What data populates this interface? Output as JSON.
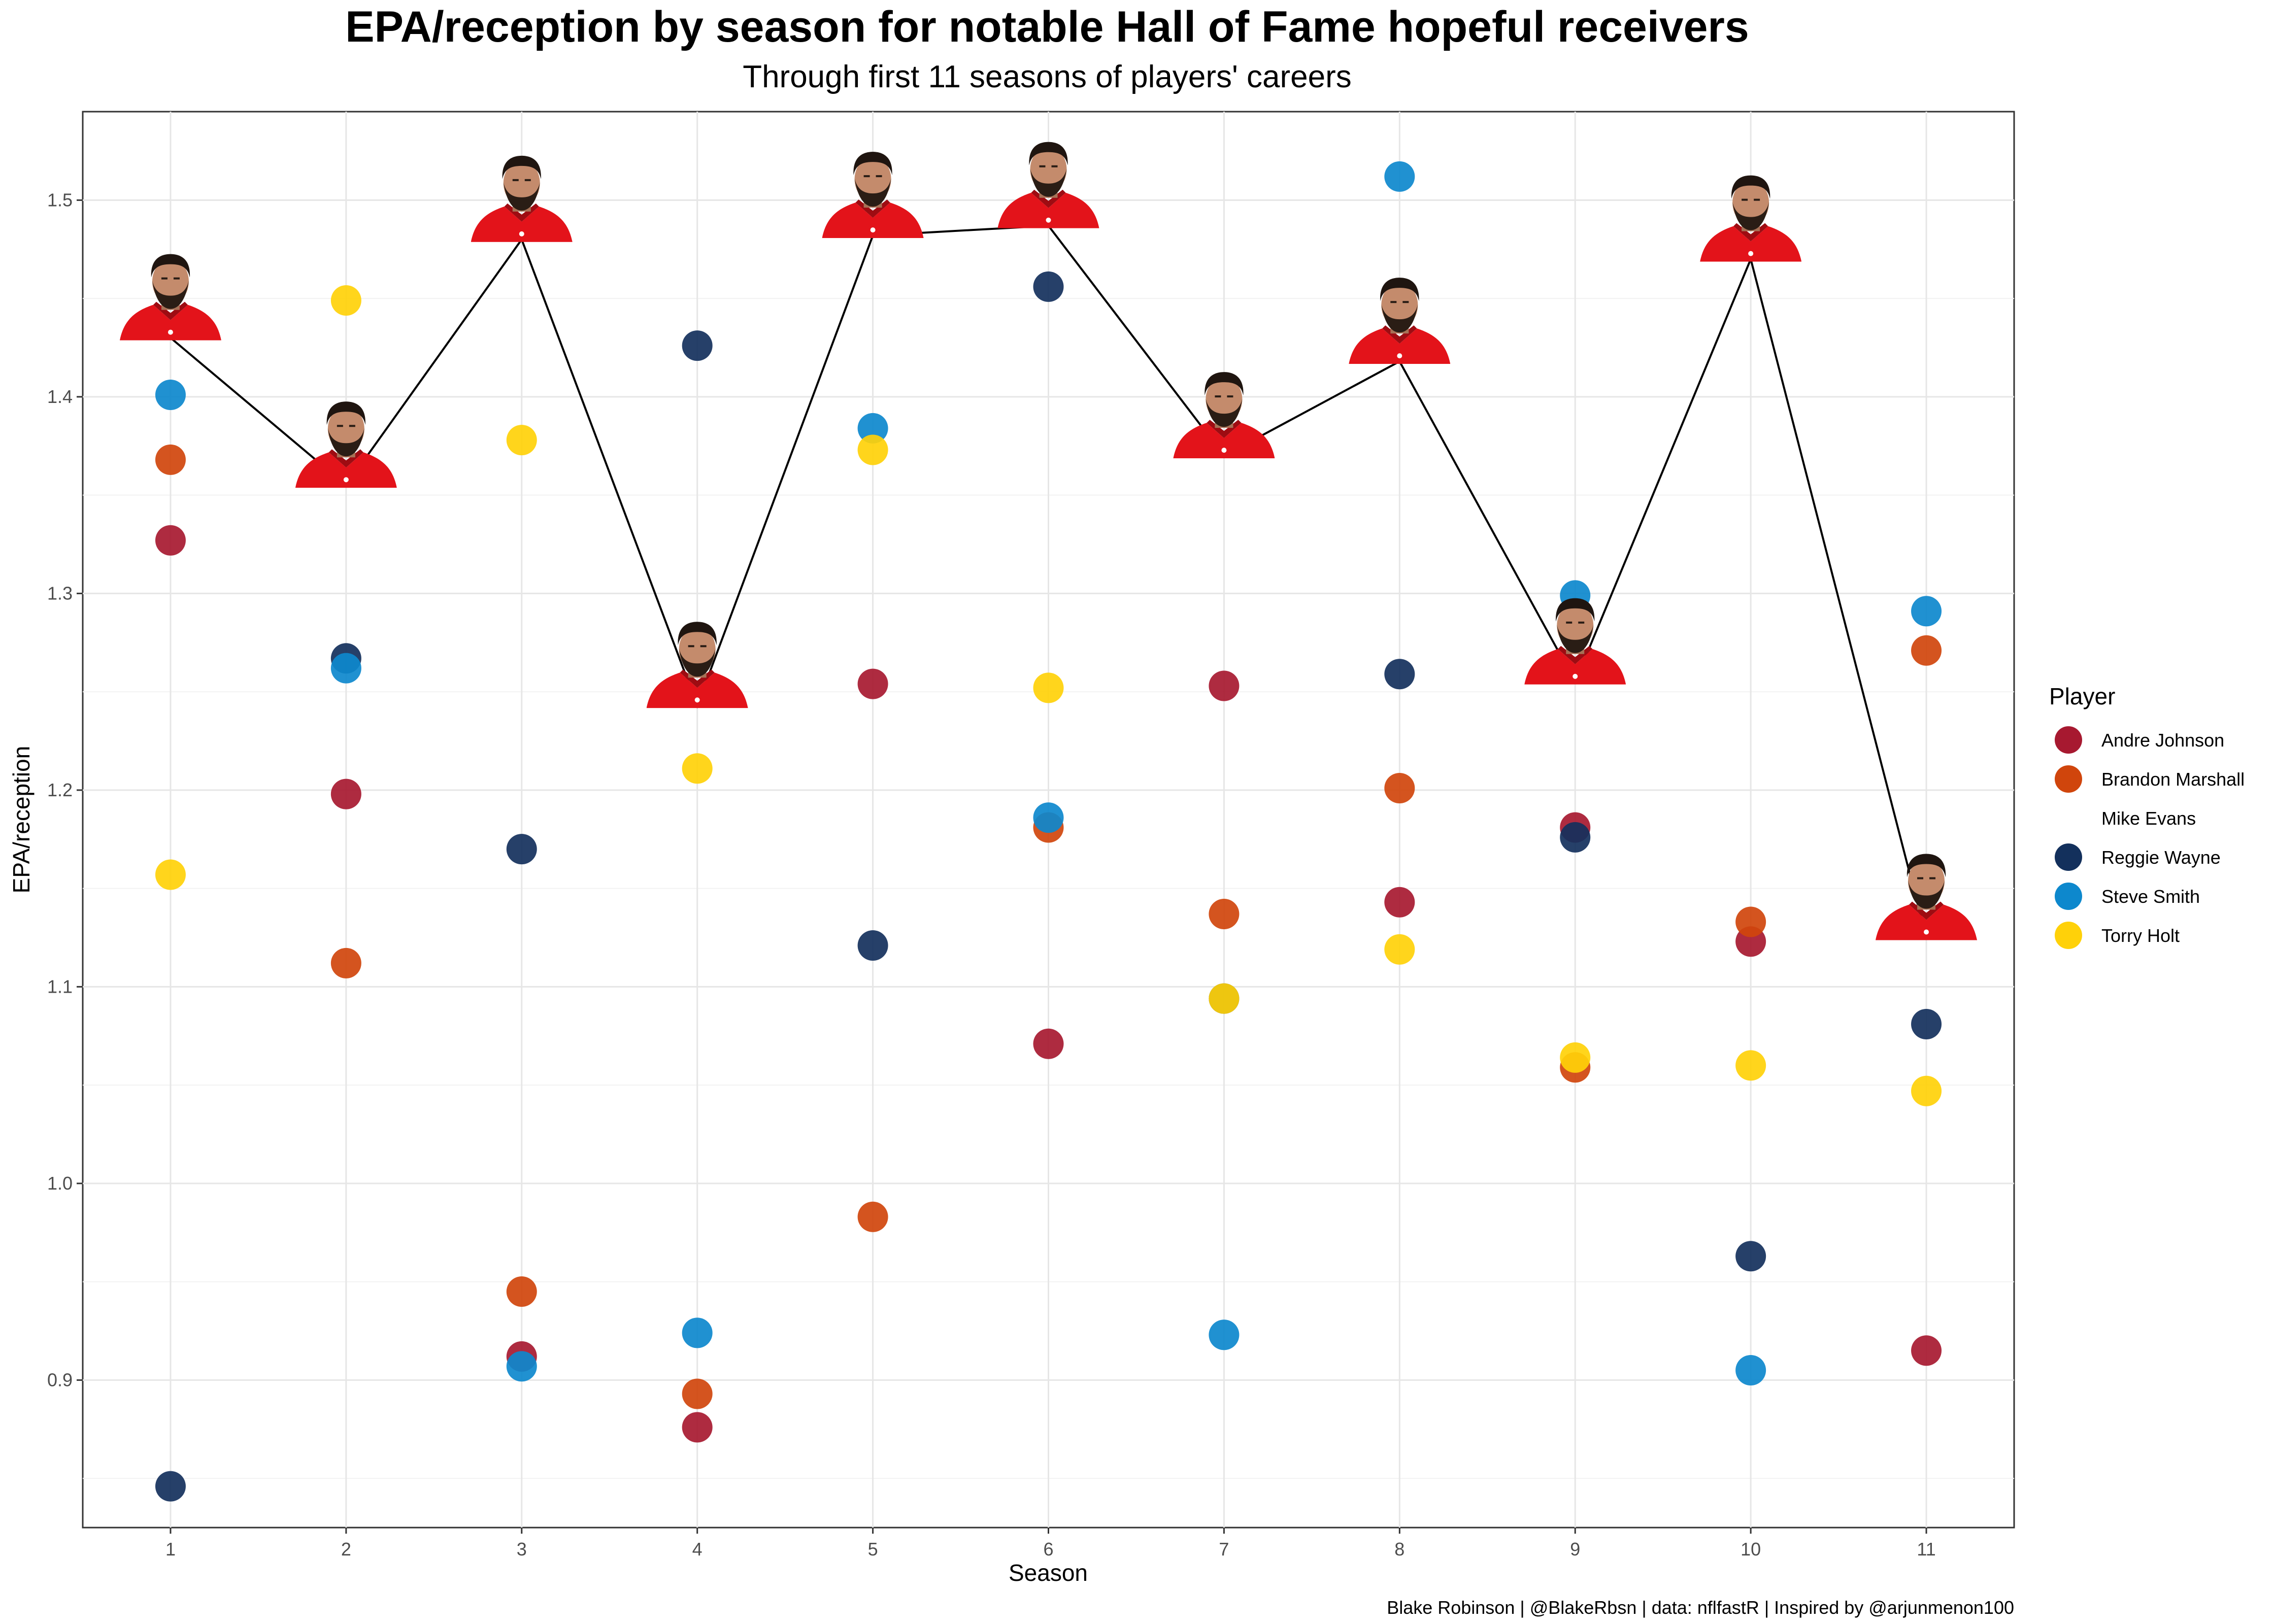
{
  "chart_data": {
    "type": "scatter",
    "title": "EPA/reception by season for notable Hall of Fame hopeful receivers",
    "subtitle": "Through first 11 seasons of players' careers",
    "xlabel": "Season",
    "ylabel": "EPA/reception",
    "caption": "Blake Robinson | @BlakeRbsn | data: nflfastR | Inspired by @arjunmenon100",
    "xlim": [
      0.5,
      11.5
    ],
    "ylim": [
      0.825,
      1.545
    ],
    "x_ticks": [
      1,
      2,
      3,
      4,
      5,
      6,
      7,
      8,
      9,
      10,
      11
    ],
    "y_ticks": [
      0.9,
      1.0,
      1.1,
      1.2,
      1.3,
      1.4,
      1.5
    ],
    "y_tick_labels": [
      "0.9",
      "1.0",
      "1.1",
      "1.2",
      "1.3",
      "1.4",
      "1.5"
    ],
    "grid": true,
    "legend": {
      "title": "Player",
      "position": "right"
    },
    "highlight_series": "Mike Evans",
    "highlight_style": "player headshot markers joined by a black line",
    "series": [
      {
        "name": "Andre Johnson",
        "color": "#A71930",
        "x": [
          1,
          2,
          3,
          4,
          5,
          6,
          7,
          8,
          9,
          10,
          11
        ],
        "y": [
          1.327,
          1.198,
          0.912,
          0.876,
          1.254,
          1.071,
          1.253,
          1.143,
          1.181,
          1.123,
          0.915
        ]
      },
      {
        "name": "Brandon Marshall",
        "color": "#D0450C",
        "x": [
          1,
          2,
          3,
          4,
          5,
          6,
          7,
          8,
          9,
          10,
          11
        ],
        "y": [
          1.368,
          1.112,
          0.945,
          0.893,
          0.983,
          1.181,
          1.137,
          1.201,
          1.059,
          1.133,
          1.271
        ]
      },
      {
        "name": "Mike Evans",
        "color": "#D50A0A",
        "x": [
          1,
          2,
          3,
          4,
          5,
          6,
          7,
          8,
          9,
          10,
          11
        ],
        "y": [
          1.43,
          1.355,
          1.48,
          1.243,
          1.482,
          1.487,
          1.37,
          1.418,
          1.255,
          1.47,
          1.125
        ]
      },
      {
        "name": "Reggie Wayne",
        "color": "#13305C",
        "x": [
          1,
          2,
          3,
          4,
          5,
          6,
          7,
          8,
          9,
          10,
          11
        ],
        "y": [
          0.846,
          1.267,
          1.17,
          1.426,
          1.121,
          1.456,
          1.094,
          1.259,
          1.176,
          0.963,
          1.081
        ]
      },
      {
        "name": "Steve Smith",
        "color": "#0D88CD",
        "x": [
          1,
          2,
          3,
          4,
          5,
          6,
          7,
          8,
          9,
          10,
          11
        ],
        "y": [
          1.401,
          1.262,
          0.907,
          0.924,
          1.384,
          1.186,
          0.923,
          1.512,
          1.299,
          0.905,
          1.291
        ]
      },
      {
        "name": "Torry Holt",
        "color": "#FFD109",
        "x": [
          1,
          2,
          3,
          4,
          5,
          6,
          7,
          8,
          9,
          10,
          11
        ],
        "y": [
          1.157,
          1.449,
          1.378,
          1.211,
          1.373,
          1.252,
          1.094,
          1.119,
          1.064,
          1.06,
          1.047
        ]
      }
    ]
  }
}
